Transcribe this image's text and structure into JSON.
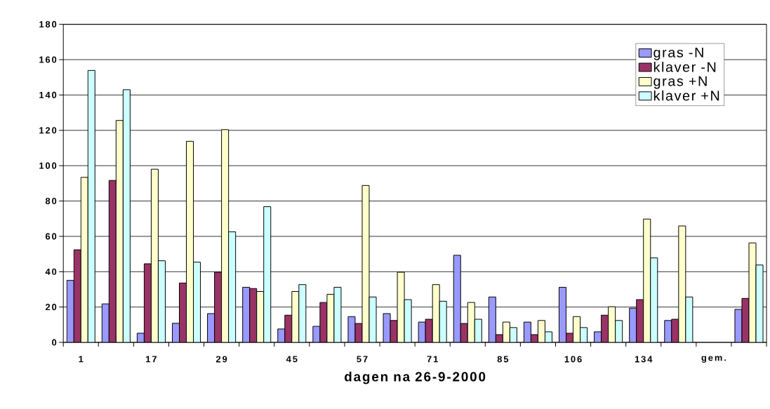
{
  "chart_data": {
    "type": "bar",
    "xlabel": "dagen na 26-9-2000",
    "categories": [
      "1",
      null,
      "17",
      null,
      "29",
      null,
      "45",
      null,
      "57",
      null,
      "71",
      null,
      "85",
      null,
      "106",
      null,
      "134",
      null,
      "gem.",
      null
    ],
    "series": [
      {
        "name": "gras -N",
        "color": "#9999ff",
        "values": [
          35.1,
          21.8,
          5.2,
          10.8,
          16.3,
          31.2,
          7.6,
          9.1,
          14.6,
          16.3,
          11.5,
          49.3,
          25.7,
          11.5,
          31.2,
          6.0,
          19.4,
          12.4,
          null,
          18.7
        ]
      },
      {
        "name": "klaver -N",
        "color": "#993366",
        "values": [
          52.4,
          91.7,
          44.5,
          33.6,
          39.7,
          30.5,
          15.4,
          22.6,
          10.7,
          12.4,
          13.1,
          10.7,
          4.4,
          4.4,
          5.2,
          15.4,
          24.2,
          13.1,
          null,
          24.9
        ]
      },
      {
        "name": "gras +N",
        "color": "#ffffcc",
        "values": [
          93.4,
          125.6,
          98.0,
          113.8,
          120.4,
          28.8,
          28.8,
          27.2,
          88.8,
          39.7,
          32.7,
          22.6,
          11.5,
          12.4,
          14.6,
          20.2,
          69.8,
          65.9,
          null,
          56.3
        ]
      },
      {
        "name": "klaver +N",
        "color": "#ccffff",
        "values": [
          153.9,
          143.0,
          46.2,
          45.4,
          62.6,
          76.8,
          32.7,
          31.2,
          25.7,
          24.2,
          23.3,
          13.1,
          8.4,
          6.0,
          8.4,
          12.4,
          47.8,
          25.7,
          null,
          43.8
        ]
      }
    ],
    "ylim": [
      0,
      180
    ],
    "yticks": [
      0,
      20,
      40,
      60,
      80,
      100,
      120,
      140,
      160,
      180
    ],
    "grid": "y",
    "legend": "top right"
  }
}
